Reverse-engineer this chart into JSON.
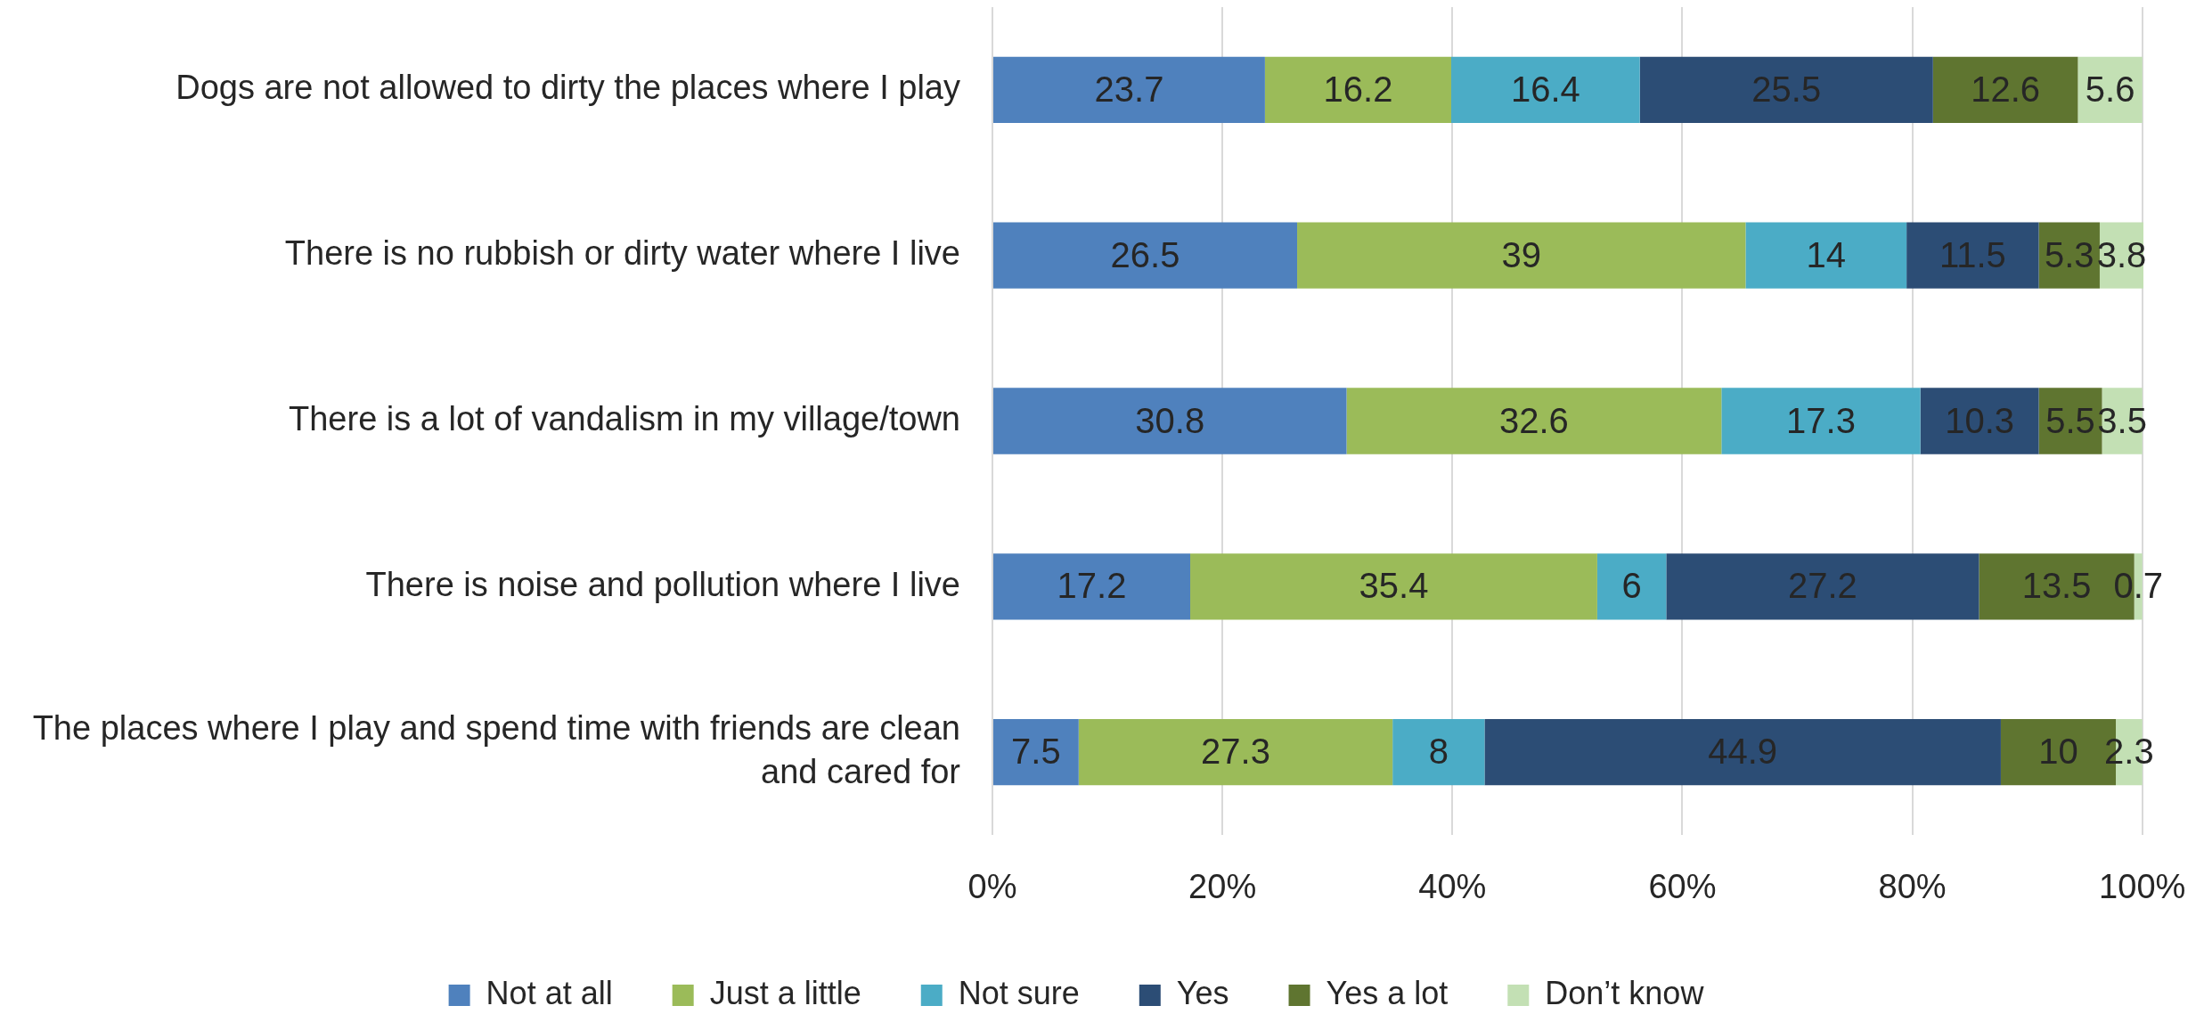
{
  "chart_data": {
    "type": "bar",
    "orientation": "horizontal",
    "stacked": true,
    "categories": [
      "Dogs are not allowed to dirty the places where I play",
      "There is no rubbish or dirty water where I live",
      "There is a lot of vandalism in my village/town",
      "There is noise and pollution where I live",
      "The places where I play and spend time with friends are clean and cared for"
    ],
    "series": [
      {
        "name": "Not at all",
        "color": "#4f81bd",
        "values": [
          23.7,
          26.5,
          30.8,
          17.2,
          7.5
        ]
      },
      {
        "name": "Just a little",
        "color": "#9bbb59",
        "values": [
          16.2,
          39,
          32.6,
          35.4,
          27.3
        ]
      },
      {
        "name": "Not sure",
        "color": "#4bacc6",
        "values": [
          16.4,
          14,
          17.3,
          6,
          8
        ]
      },
      {
        "name": "Yes",
        "color": "#2c4d75",
        "values": [
          25.5,
          11.5,
          10.3,
          27.2,
          44.9
        ]
      },
      {
        "name": "Yes a lot",
        "color": "#5f7530",
        "values": [
          12.6,
          5.3,
          5.5,
          13.5,
          10
        ]
      },
      {
        "name": "Don’t know",
        "color": "#c3e0b4",
        "values": [
          5.6,
          3.8,
          3.5,
          0.7,
          2.3
        ]
      }
    ],
    "xlim": [
      0,
      100.1
    ],
    "xticks": [
      {
        "value": 0,
        "label": "0%"
      },
      {
        "value": 20,
        "label": "20%"
      },
      {
        "value": 40,
        "label": "40%"
      },
      {
        "value": 60,
        "label": "60%"
      },
      {
        "value": 80,
        "label": "80%"
      },
      {
        "value": 100,
        "label": "100%"
      }
    ],
    "grid": "x",
    "legend": "bottom",
    "data_labels": true
  }
}
